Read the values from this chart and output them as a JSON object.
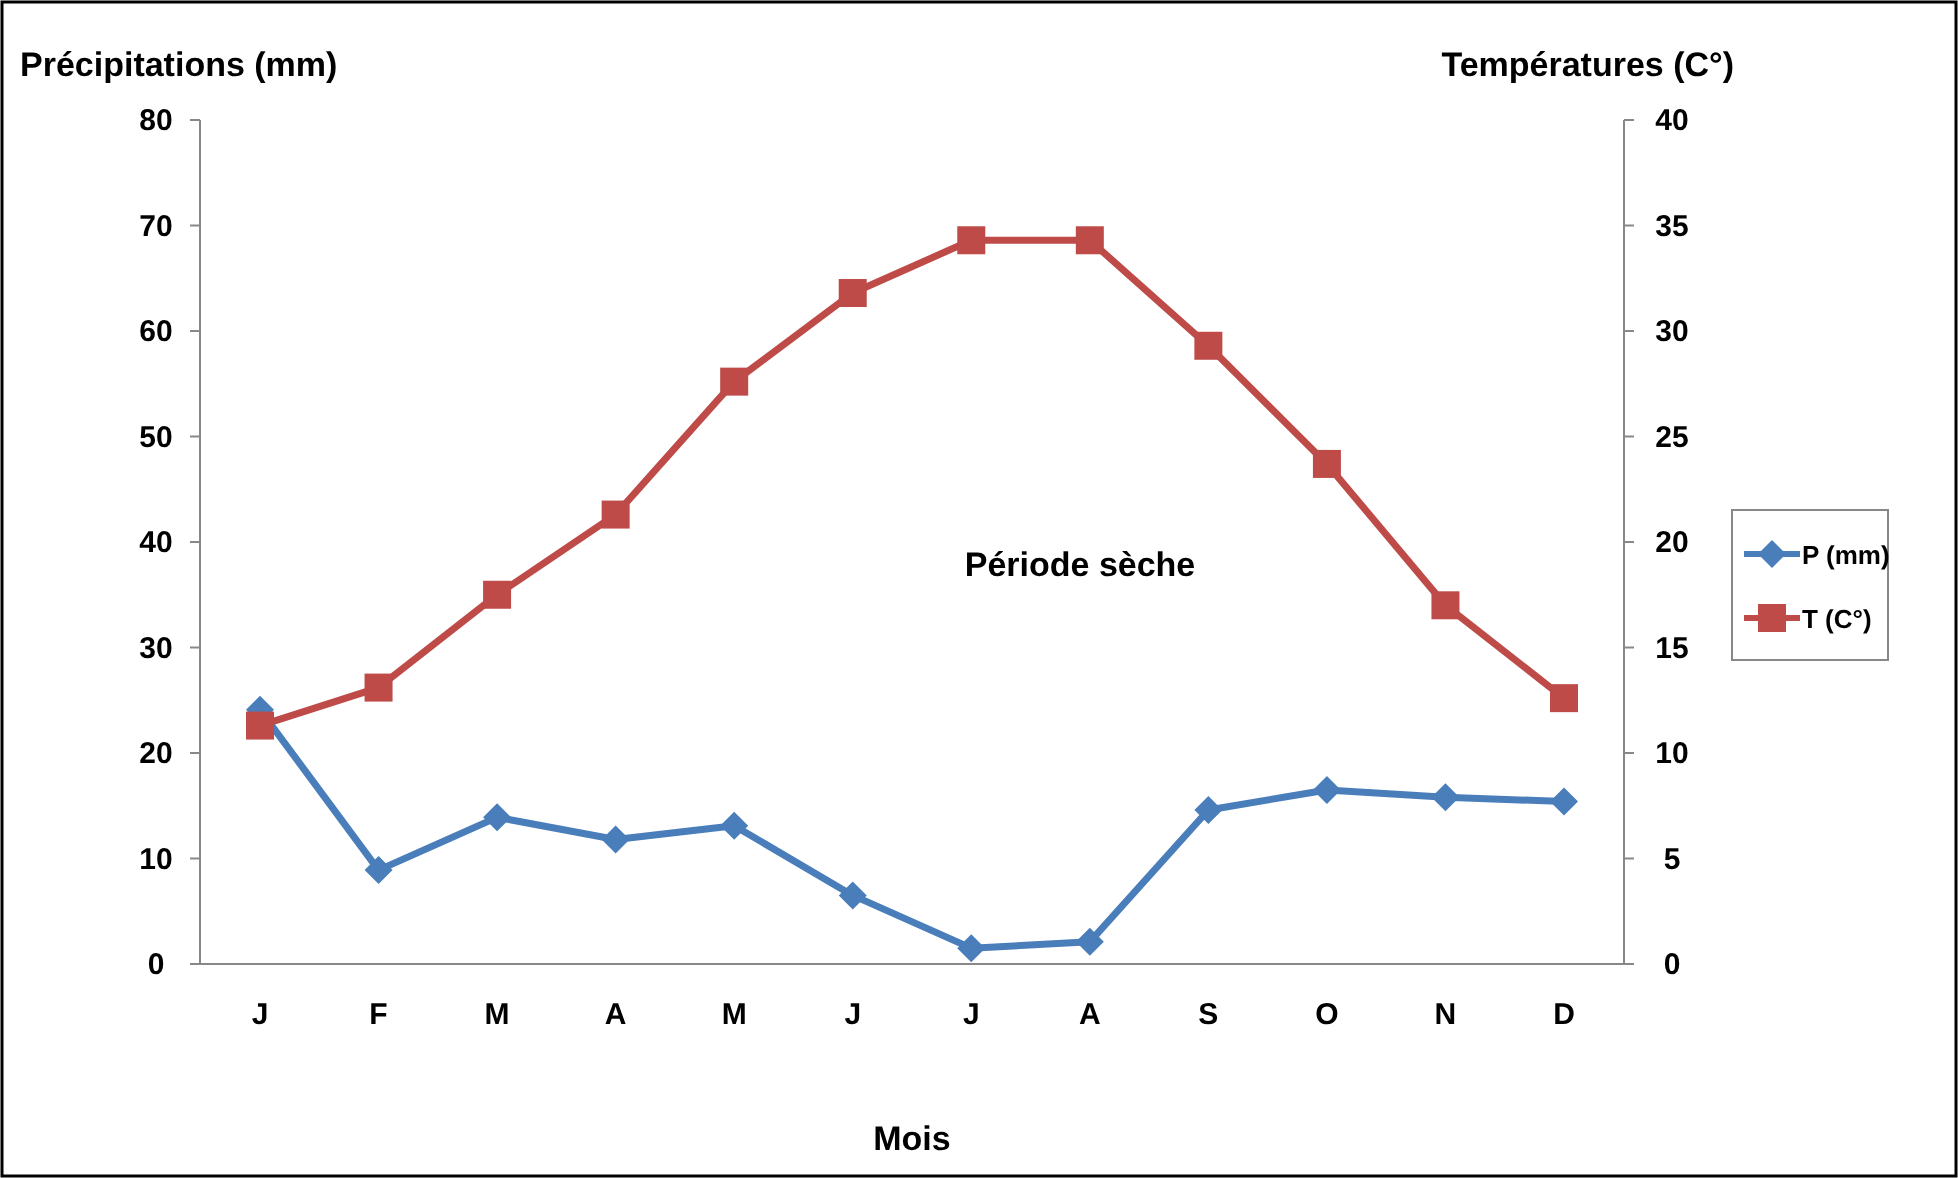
{
  "chart_data": {
    "type": "line",
    "xlabel": "Mois",
    "ylabel": "Précipitations (mm)",
    "y2label": "Températures (C°)",
    "categories": [
      "J",
      "F",
      "M",
      "A",
      "M",
      "J",
      "J",
      "A",
      "S",
      "O",
      "N",
      "D"
    ],
    "series": [
      {
        "name": "P (mm)",
        "color": "#4a7ebb",
        "marker": "diamond",
        "values": [
          24.1,
          8.9,
          13.9,
          11.8,
          13.1,
          6.5,
          1.5,
          2.1,
          14.6,
          16.5,
          15.8,
          15.4
        ]
      },
      {
        "name": "T (C°)",
        "color": "#be4b48",
        "marker": "square",
        "axis": "y2",
        "values": [
          11.3,
          13.1,
          17.5,
          21.3,
          27.6,
          31.8,
          34.3,
          34.3,
          29.3,
          23.7,
          17.0,
          12.6
        ]
      }
    ],
    "ylim": [
      0,
      80
    ],
    "yticks": [
      0,
      10,
      20,
      30,
      40,
      50,
      60,
      70,
      80
    ],
    "y2lim": [
      0,
      40
    ],
    "y2ticks": [
      0,
      5,
      10,
      15,
      20,
      25,
      30,
      35,
      40
    ],
    "annotations": [
      "Période sèche"
    ],
    "grid": false,
    "legend": "right",
    "line_style": "solid"
  }
}
